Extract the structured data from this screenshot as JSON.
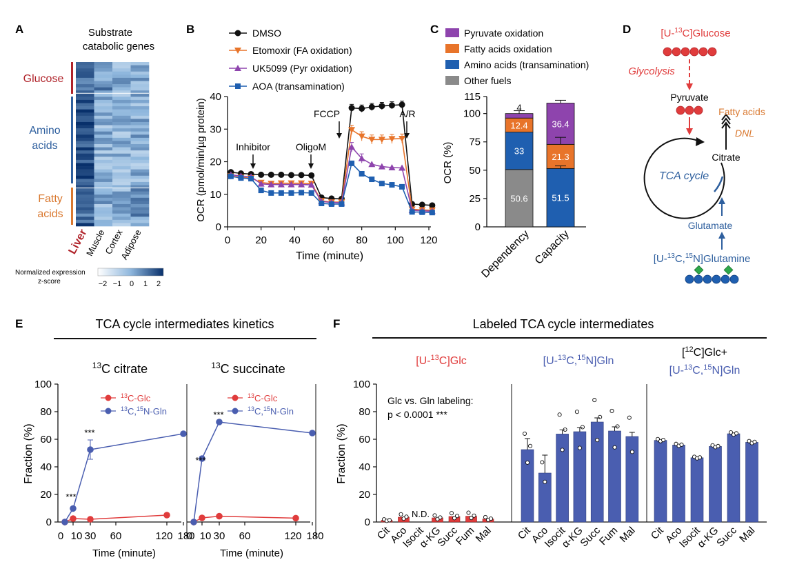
{
  "colors": {
    "black": "#111111",
    "orange": "#e8742a",
    "purple": "#8e44ad",
    "blue": "#1f5fb0",
    "grey": "#8a8a8a",
    "red": "#e03c3c",
    "gblue": "#4a5eb0",
    "darkred": "#b0232a",
    "glutblue": "#2e5f9e",
    "fattyorange": "#d9782f",
    "green": "#2ea84a"
  },
  "panels": {
    "A": "A",
    "B": "B",
    "C": "C",
    "D": "D",
    "E": "E",
    "F": "F"
  },
  "chart_data": [
    {
      "id": "A",
      "type": "heatmap",
      "title": "Substrate catabolic genes",
      "row_groups": [
        {
          "label": "Glucose",
          "rows": 10
        },
        {
          "label": "Amino acids",
          "rows": 30
        },
        {
          "label": "Fatty acids",
          "rows": 12
        }
      ],
      "columns": [
        "Liver",
        "Muscle",
        "Cortex",
        "Adipose"
      ],
      "colorbar": {
        "label": "Normalized expression z-score",
        "ticks": [
          "−2",
          "−1",
          "0",
          "1",
          "2"
        ],
        "range": [
          -2,
          2
        ]
      }
    },
    {
      "id": "B",
      "type": "line",
      "xlabel": "Time (minute)",
      "ylabel": "OCR (pmol/min/µg protein)",
      "xlim": [
        0,
        120
      ],
      "ylim": [
        0,
        40
      ],
      "xticks": [
        0,
        20,
        40,
        60,
        80,
        100,
        120
      ],
      "yticks": [
        0,
        10,
        20,
        30,
        40
      ],
      "x": [
        2,
        8,
        14,
        20,
        26,
        32,
        38,
        44,
        50,
        56,
        62,
        68,
        74,
        80,
        86,
        92,
        98,
        104,
        110,
        116,
        122
      ],
      "series": [
        {
          "name": "DMSO",
          "marker": "circle",
          "values": [
            16.8,
            16.4,
            16.2,
            16.0,
            16.0,
            16.0,
            15.9,
            15.9,
            15.8,
            9.0,
            8.7,
            8.6,
            36.5,
            36.3,
            36.8,
            37.1,
            37.3,
            37.5,
            7.0,
            6.8,
            6.6
          ]
        },
        {
          "name": "Etomoxir (FA oxidation)",
          "marker": "triangle-down",
          "values": [
            15.6,
            15.2,
            15.0,
            13.6,
            13.3,
            13.4,
            13.4,
            13.4,
            13.3,
            8.0,
            7.6,
            7.6,
            29.8,
            27.8,
            26.8,
            26.8,
            27.0,
            27.1,
            5.4,
            5.2,
            5.1
          ]
        },
        {
          "name": "UK5099 (Pyr oxidation)",
          "marker": "triangle-up",
          "values": [
            16.0,
            15.6,
            15.4,
            13.2,
            13.0,
            13.0,
            13.0,
            13.0,
            12.9,
            7.8,
            7.5,
            7.4,
            24.5,
            21.0,
            19.2,
            18.5,
            18.2,
            18.1,
            5.1,
            4.9,
            4.8
          ]
        },
        {
          "name": "AOA (transamination)",
          "marker": "square",
          "values": [
            15.5,
            15.0,
            14.8,
            11.2,
            10.4,
            10.4,
            10.4,
            10.5,
            10.4,
            7.2,
            7.0,
            7.0,
            19.5,
            16.3,
            14.6,
            13.3,
            12.9,
            12.3,
            4.6,
            4.5,
            4.4
          ]
        }
      ],
      "annotations": [
        "Inhibitor",
        "OligoM",
        "FCCP",
        "A/R"
      ]
    },
    {
      "id": "C",
      "type": "bar",
      "categories": [
        "Dependency",
        "Capacity"
      ],
      "ylabel": "OCR (%)",
      "ylim": [
        0,
        115
      ],
      "yticks": [
        0,
        25,
        50,
        75,
        100,
        115
      ],
      "series": [
        {
          "name": "Other fuels",
          "values": [
            50.6,
            0
          ]
        },
        {
          "name": "Amino acids (transamination)",
          "values": [
            33,
            51.5
          ]
        },
        {
          "name": "Fatty acids oxidation",
          "values": [
            12.4,
            21.3
          ]
        },
        {
          "name": "Pyruvate oxidation",
          "values": [
            4,
            36.4
          ]
        }
      ],
      "labels": [
        [
          "50.6",
          "33",
          "12.4",
          "4"
        ],
        [
          "",
          "51.5",
          "21.3",
          "36.4"
        ]
      ]
    },
    {
      "id": "E1",
      "type": "line",
      "title": "13C citrate",
      "xlabel": "Time (minute)",
      "ylabel": "Fraction (%)",
      "xticks": [
        "0",
        "10",
        "30",
        "60",
        "120",
        "180"
      ],
      "ylim": [
        0,
        100
      ],
      "yticks": [
        0,
        20,
        40,
        60,
        80,
        100
      ],
      "series": [
        {
          "name": "13C-Glc",
          "x": [
            0,
            10,
            30,
            120
          ],
          "values": [
            0,
            2.5,
            2.0,
            5.0
          ]
        },
        {
          "name": "13C,15N-Gln",
          "x": [
            0,
            10,
            30,
            180
          ],
          "values": [
            0,
            9.8,
            52.5,
            64.0
          ]
        }
      ],
      "significance": [
        "***",
        "***"
      ]
    },
    {
      "id": "E2",
      "type": "line",
      "title": "13C succinate",
      "xlabel": "Time (minute)",
      "xticks": [
        "0",
        "10",
        "30",
        "60",
        "120",
        "180"
      ],
      "ylim": [
        0,
        100
      ],
      "series": [
        {
          "name": "13C-Glc",
          "x": [
            0,
            10,
            30,
            120
          ],
          "values": [
            0,
            3.0,
            4.2,
            2.8
          ]
        },
        {
          "name": "13C,15N-Gln",
          "x": [
            0,
            10,
            30,
            180
          ],
          "values": [
            0,
            46.0,
            72.5,
            64.5
          ]
        }
      ],
      "significance": [
        "***",
        "***"
      ]
    },
    {
      "id": "F",
      "type": "bar",
      "ylabel": "Fraction (%)",
      "ylim": [
        0,
        100
      ],
      "yticks": [
        0,
        20,
        40,
        60,
        80,
        100
      ],
      "groups": [
        {
          "name": "[U-13C]Glc",
          "categories": [
            "Cit",
            "Aco",
            "Isocit",
            "α-KG",
            "Succ",
            "Fum",
            "Mal"
          ],
          "values": [
            1.2,
            3.5,
            0,
            3.0,
            4.0,
            4.2,
            2.2
          ],
          "labels": [
            "",
            "",
            "N.D.",
            "",
            "",
            "",
            ""
          ]
        },
        {
          "name": "[U-13C,15N]Gln",
          "categories": [
            "Cit",
            "Aco",
            "Isocit",
            "α-KG",
            "Succ",
            "Fum",
            "Mal"
          ],
          "values": [
            52.5,
            35.5,
            63.8,
            65.5,
            72.5,
            66.0,
            62.0
          ]
        },
        {
          "name": "[12C]Glc+[U-13C,15N]Gln",
          "categories": [
            "Cit",
            "Aco",
            "Isocit",
            "α-KG",
            "Succ",
            "Mal"
          ],
          "values": [
            59.2,
            55.8,
            46.6,
            54.8,
            64.0,
            57.8
          ]
        }
      ],
      "note": "Glc vs. Gln labeling:",
      "pvalue": "p < 0.0001 ***"
    }
  ],
  "texts": {
    "a_title1": "Substrate",
    "a_title2": "catabolic genes",
    "a_glucose": "Glucose",
    "a_amino1": "Amino",
    "a_amino2": "acids",
    "a_fatty1": "Fatty",
    "a_fatty2": "acids",
    "a_cb1": "Normalized expression",
    "a_cb2": "z-score",
    "b_legend": [
      "DMSO",
      "Etomoxir (FA oxidation)",
      "UK5099 (Pyr oxidation)",
      "AOA (transamination)"
    ],
    "c_legend": [
      "Pyruvate oxidation",
      "Fatty acids oxidation",
      "Amino acids (transamination)",
      "Other fuels"
    ],
    "d_glucose": "Glucose",
    "d_glycolysis": "Glycolysis",
    "d_pyruvate": "Pyruvate",
    "d_fatty": "Fatty acids",
    "d_dnl": "DNL",
    "d_citrate": "Citrate",
    "d_tca": "TCA cycle",
    "d_glutamate": "Glutamate",
    "d_glutamine": "Glutamine",
    "d_u": "[U-",
    "d_13": "13",
    "d_c": "C]",
    "d_c2": "C,",
    "d_15": "15",
    "d_n": "N]",
    "e_header": "TCA cycle intermediates kinetics",
    "e_t1": "C citrate",
    "e_t2": "C succinate",
    "sup13": "13",
    "sup15": "15",
    "e_leg_glc": "C-Glc",
    "e_leg_gln1": "C,",
    "e_leg_gln2": "N-Gln",
    "f_header": "Labeled TCA cycle intermediates",
    "f_h1a": "[U-",
    "f_h1b": "C]Glc",
    "f_h2a": "[U-",
    "f_h2b": "C,",
    "f_h2c": "N]Gln",
    "f_h3a": "[",
    "f_h3b": "12",
    "f_h3c": "C]Glc+"
  }
}
